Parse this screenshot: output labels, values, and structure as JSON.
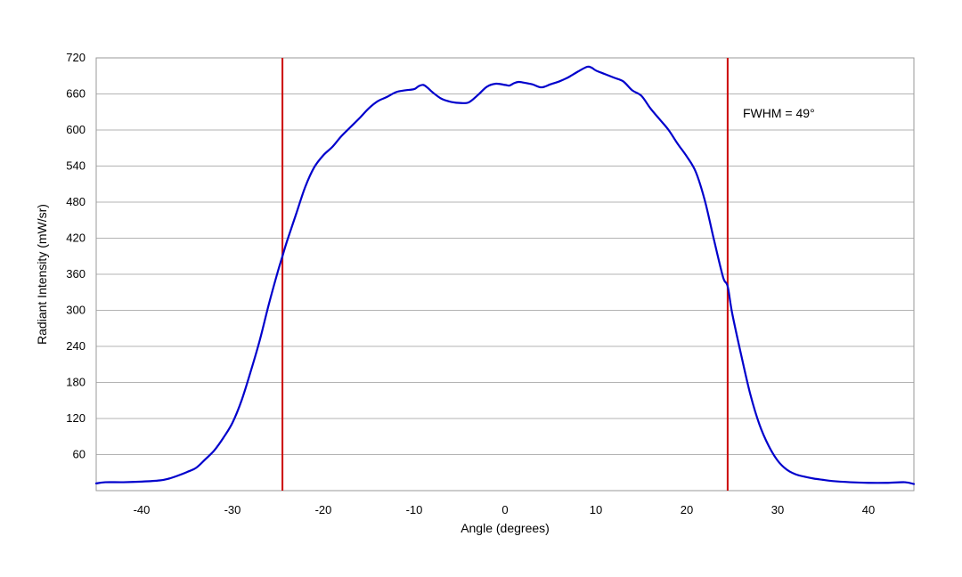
{
  "chart_data": {
    "type": "line",
    "title": "",
    "xlabel": "Angle (degrees)",
    "ylabel": "Radiant Intensity (mW/sr)",
    "xlim": [
      -45,
      45
    ],
    "ylim": [
      0,
      720
    ],
    "xticks": [
      -40,
      -30,
      -20,
      -10,
      0,
      10,
      20,
      30,
      40
    ],
    "yticks": [
      60,
      120,
      180,
      240,
      300,
      360,
      420,
      480,
      540,
      600,
      660,
      720
    ],
    "grid": "horizontal",
    "legend": "none",
    "series": [
      {
        "color": "#0000cc",
        "x": [
          -45,
          -44,
          -42,
          -40,
          -38,
          -37,
          -36,
          -35,
          -34,
          -33,
          -32,
          -31,
          -30,
          -29,
          -28,
          -27,
          -26,
          -25,
          -24.5,
          -24,
          -23,
          -22,
          -21,
          -20,
          -19,
          -18,
          -17,
          -16,
          -15,
          -14,
          -13,
          -12,
          -11,
          -10,
          -9.5,
          -9,
          -8.5,
          -8,
          -7,
          -6,
          -5,
          -4,
          -3,
          -2,
          -1,
          0,
          0.5,
          1,
          1.5,
          2,
          3,
          4,
          5,
          6,
          7,
          8,
          9,
          9.5,
          10,
          11,
          12,
          13,
          14,
          15,
          16,
          17,
          18,
          19,
          20,
          21,
          22,
          23,
          24,
          24.5,
          25,
          26,
          27,
          28,
          29,
          30,
          31,
          32,
          33,
          34,
          35,
          36,
          38,
          40,
          42,
          44,
          45
        ],
        "y": [
          12,
          14,
          14,
          15,
          17,
          20,
          25,
          31,
          38,
          52,
          67,
          88,
          113,
          150,
          198,
          250,
          310,
          365,
          390,
          415,
          460,
          505,
          538,
          558,
          572,
          590,
          605,
          620,
          636,
          648,
          655,
          663,
          666,
          668,
          673,
          675,
          670,
          663,
          652,
          647,
          645,
          646,
          658,
          672,
          677,
          675,
          674,
          678,
          680,
          679,
          676,
          671,
          676,
          681,
          688,
          697,
          705,
          704,
          699,
          693,
          687,
          681,
          666,
          657,
          636,
          618,
          600,
          577,
          556,
          530,
          482,
          417,
          355,
          340,
          295,
          225,
          160,
          110,
          75,
          50,
          35,
          27,
          23,
          20,
          18,
          16,
          14,
          13,
          13,
          14,
          11
        ]
      }
    ],
    "vertical_lines": [
      {
        "x": -24.5,
        "color": "#cc0000"
      },
      {
        "x": 24.5,
        "color": "#cc0000"
      }
    ],
    "annotations": [
      {
        "text": "FWHM = 49°"
      }
    ]
  }
}
